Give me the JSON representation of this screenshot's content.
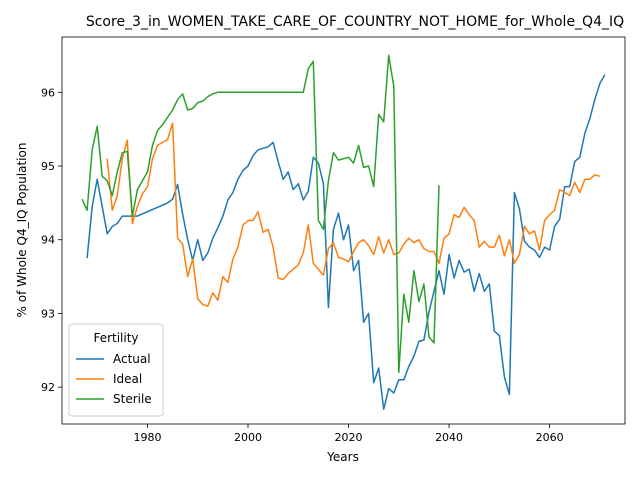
{
  "chart_data": {
    "type": "line",
    "title": "Score_3_in_WOMEN_TAKE_CARE_OF_COUNTRY_NOT_HOME_for_Whole_Q4_IQ",
    "xlabel": "Years",
    "ylabel": "% of Whole Q4_IQ Population",
    "xlim": [
      1963,
      2075
    ],
    "ylim": [
      91.5,
      96.75
    ],
    "xticks": [
      1980,
      2000,
      2020,
      2040,
      2060
    ],
    "yticks": [
      92,
      93,
      94,
      95,
      96
    ],
    "grid": false,
    "legend": {
      "title": "Fertility",
      "placement": "lower-left"
    },
    "series": [
      {
        "name": "Actual",
        "color": "#1f77b4",
        "points": [
          [
            1968,
            93.75
          ],
          [
            1969,
            94.45
          ],
          [
            1970,
            94.82
          ],
          [
            1971,
            94.45
          ],
          [
            1972,
            94.08
          ],
          [
            1973,
            94.18
          ],
          [
            1974,
            94.22
          ],
          [
            1975,
            94.32
          ],
          [
            1976,
            94.32
          ],
          [
            1977,
            94.32
          ],
          [
            1978,
            94.32
          ],
          [
            1980,
            94.38
          ],
          [
            1982,
            94.44
          ],
          [
            1984,
            94.5
          ],
          [
            1985,
            94.55
          ],
          [
            1986,
            94.75
          ],
          [
            1987,
            94.35
          ],
          [
            1988,
            94.0
          ],
          [
            1989,
            93.72
          ],
          [
            1990,
            94.0
          ],
          [
            1991,
            93.72
          ],
          [
            1992,
            93.82
          ],
          [
            1993,
            94.02
          ],
          [
            1994,
            94.16
          ],
          [
            1995,
            94.32
          ],
          [
            1996,
            94.54
          ],
          [
            1997,
            94.64
          ],
          [
            1998,
            94.82
          ],
          [
            1999,
            94.94
          ],
          [
            2000,
            95.0
          ],
          [
            2001,
            95.14
          ],
          [
            2002,
            95.22
          ],
          [
            2003,
            95.24
          ],
          [
            2004,
            95.26
          ],
          [
            2005,
            95.32
          ],
          [
            2006,
            95.06
          ],
          [
            2007,
            94.82
          ],
          [
            2008,
            94.92
          ],
          [
            2009,
            94.68
          ],
          [
            2010,
            94.76
          ],
          [
            2011,
            94.54
          ],
          [
            2012,
            94.66
          ],
          [
            2013,
            95.12
          ],
          [
            2014,
            95.04
          ],
          [
            2015,
            94.76
          ],
          [
            2016,
            93.08
          ],
          [
            2017,
            94.14
          ],
          [
            2018,
            94.36
          ],
          [
            2019,
            94.0
          ],
          [
            2020,
            94.2
          ],
          [
            2021,
            93.58
          ],
          [
            2022,
            93.72
          ],
          [
            2023,
            92.88
          ],
          [
            2024,
            93.0
          ],
          [
            2025,
            92.06
          ],
          [
            2026,
            92.26
          ],
          [
            2027,
            91.7
          ],
          [
            2028,
            91.98
          ],
          [
            2029,
            91.92
          ],
          [
            2030,
            92.1
          ],
          [
            2031,
            92.1
          ],
          [
            2032,
            92.28
          ],
          [
            2033,
            92.42
          ],
          [
            2034,
            92.62
          ],
          [
            2035,
            92.64
          ],
          [
            2036,
            93.02
          ],
          [
            2037,
            93.3
          ],
          [
            2038,
            93.58
          ],
          [
            2039,
            93.26
          ],
          [
            2040,
            93.8
          ],
          [
            2041,
            93.48
          ],
          [
            2042,
            93.72
          ],
          [
            2043,
            93.56
          ],
          [
            2044,
            93.6
          ],
          [
            2045,
            93.3
          ],
          [
            2046,
            93.54
          ],
          [
            2047,
            93.3
          ],
          [
            2048,
            93.4
          ],
          [
            2049,
            92.76
          ],
          [
            2050,
            92.7
          ],
          [
            2051,
            92.14
          ],
          [
            2052,
            91.9
          ],
          [
            2053,
            94.64
          ],
          [
            2054,
            94.42
          ],
          [
            2055,
            93.98
          ],
          [
            2056,
            93.9
          ],
          [
            2057,
            93.86
          ],
          [
            2058,
            93.76
          ],
          [
            2059,
            93.9
          ],
          [
            2060,
            93.86
          ],
          [
            2061,
            94.18
          ],
          [
            2062,
            94.28
          ],
          [
            2063,
            94.72
          ],
          [
            2064,
            94.72
          ],
          [
            2065,
            95.06
          ],
          [
            2066,
            95.12
          ],
          [
            2067,
            95.44
          ],
          [
            2068,
            95.64
          ],
          [
            2069,
            95.9
          ],
          [
            2070,
            96.12
          ],
          [
            2071,
            96.24
          ]
        ]
      },
      {
        "name": "Ideal",
        "color": "#ff7f0e",
        "points": [
          [
            1972,
            95.1
          ],
          [
            1973,
            94.4
          ],
          [
            1974,
            94.6
          ],
          [
            1975,
            95.1
          ],
          [
            1976,
            95.35
          ],
          [
            1977,
            94.22
          ],
          [
            1978,
            94.45
          ],
          [
            1979,
            94.62
          ],
          [
            1980,
            94.72
          ],
          [
            1981,
            95.1
          ],
          [
            1982,
            95.28
          ],
          [
            1983,
            95.32
          ],
          [
            1984,
            95.36
          ],
          [
            1985,
            95.58
          ],
          [
            1986,
            94.02
          ],
          [
            1987,
            93.94
          ],
          [
            1988,
            93.5
          ],
          [
            1989,
            93.74
          ],
          [
            1990,
            93.2
          ],
          [
            1991,
            93.12
          ],
          [
            1992,
            93.1
          ],
          [
            1993,
            93.28
          ],
          [
            1994,
            93.18
          ],
          [
            1995,
            93.5
          ],
          [
            1996,
            93.42
          ],
          [
            1997,
            93.74
          ],
          [
            1998,
            93.9
          ],
          [
            1999,
            94.2
          ],
          [
            2000,
            94.26
          ],
          [
            2001,
            94.26
          ],
          [
            2002,
            94.38
          ],
          [
            2003,
            94.1
          ],
          [
            2004,
            94.14
          ],
          [
            2005,
            93.9
          ],
          [
            2006,
            93.48
          ],
          [
            2007,
            93.46
          ],
          [
            2008,
            93.54
          ],
          [
            2009,
            93.6
          ],
          [
            2010,
            93.66
          ],
          [
            2011,
            93.82
          ],
          [
            2012,
            94.2
          ],
          [
            2013,
            93.68
          ],
          [
            2014,
            93.6
          ],
          [
            2015,
            93.52
          ],
          [
            2016,
            93.88
          ],
          [
            2017,
            93.96
          ],
          [
            2018,
            93.76
          ],
          [
            2019,
            93.74
          ],
          [
            2020,
            93.7
          ],
          [
            2021,
            93.84
          ],
          [
            2022,
            93.96
          ],
          [
            2023,
            94.0
          ],
          [
            2024,
            93.92
          ],
          [
            2025,
            93.8
          ],
          [
            2026,
            94.04
          ],
          [
            2027,
            93.82
          ],
          [
            2028,
            94.0
          ],
          [
            2029,
            93.8
          ],
          [
            2030,
            93.82
          ],
          [
            2031,
            93.94
          ],
          [
            2032,
            94.02
          ],
          [
            2033,
            93.96
          ],
          [
            2034,
            94.0
          ],
          [
            2035,
            93.88
          ],
          [
            2036,
            93.84
          ],
          [
            2037,
            93.84
          ],
          [
            2038,
            93.68
          ],
          [
            2039,
            94.02
          ],
          [
            2040,
            94.08
          ],
          [
            2041,
            94.34
          ],
          [
            2042,
            94.3
          ],
          [
            2043,
            94.44
          ],
          [
            2044,
            94.34
          ],
          [
            2045,
            94.26
          ],
          [
            2046,
            93.9
          ],
          [
            2047,
            93.98
          ],
          [
            2048,
            93.9
          ],
          [
            2049,
            93.9
          ],
          [
            2050,
            94.06
          ],
          [
            2051,
            93.78
          ],
          [
            2052,
            94.0
          ],
          [
            2053,
            93.68
          ],
          [
            2054,
            93.8
          ],
          [
            2055,
            94.18
          ],
          [
            2056,
            94.08
          ],
          [
            2057,
            94.12
          ],
          [
            2058,
            93.86
          ],
          [
            2059,
            94.26
          ],
          [
            2060,
            94.34
          ],
          [
            2061,
            94.4
          ],
          [
            2062,
            94.68
          ],
          [
            2063,
            94.64
          ],
          [
            2064,
            94.6
          ],
          [
            2065,
            94.78
          ],
          [
            2066,
            94.64
          ],
          [
            2067,
            94.82
          ],
          [
            2068,
            94.82
          ],
          [
            2069,
            94.88
          ],
          [
            2070,
            94.86
          ]
        ]
      },
      {
        "name": "Sterile",
        "color": "#2ca02c",
        "points": [
          [
            1967,
            94.55
          ],
          [
            1968,
            94.4
          ],
          [
            1969,
            95.22
          ],
          [
            1970,
            95.54
          ],
          [
            1971,
            94.86
          ],
          [
            1972,
            94.8
          ],
          [
            1973,
            94.6
          ],
          [
            1974,
            94.92
          ],
          [
            1975,
            95.18
          ],
          [
            1976,
            95.2
          ],
          [
            1977,
            94.32
          ],
          [
            1978,
            94.68
          ],
          [
            1979,
            94.8
          ],
          [
            1980,
            94.92
          ],
          [
            1981,
            95.28
          ],
          [
            1982,
            95.48
          ],
          [
            1983,
            95.56
          ],
          [
            1984,
            95.66
          ],
          [
            1985,
            95.76
          ],
          [
            1986,
            95.9
          ],
          [
            1987,
            95.98
          ],
          [
            1988,
            95.76
          ],
          [
            1989,
            95.78
          ],
          [
            1990,
            95.86
          ],
          [
            1991,
            95.88
          ],
          [
            1992,
            95.94
          ],
          [
            1993,
            95.98
          ],
          [
            1994,
            96.0
          ],
          [
            1995,
            96.0
          ],
          [
            1996,
            96.0
          ],
          [
            1997,
            96.0
          ],
          [
            1998,
            96.0
          ],
          [
            2000,
            96.0
          ],
          [
            2005,
            96.0
          ],
          [
            2010,
            96.0
          ],
          [
            2011,
            96.0
          ],
          [
            2012,
            96.32
          ],
          [
            2013,
            96.42
          ],
          [
            2014,
            94.26
          ],
          [
            2015,
            94.14
          ],
          [
            2016,
            94.8
          ],
          [
            2017,
            95.18
          ],
          [
            2018,
            95.08
          ],
          [
            2019,
            95.1
          ],
          [
            2020,
            95.12
          ],
          [
            2021,
            95.04
          ],
          [
            2022,
            95.28
          ],
          [
            2023,
            94.98
          ],
          [
            2024,
            95.0
          ],
          [
            2025,
            94.72
          ],
          [
            2026,
            95.7
          ],
          [
            2027,
            95.6
          ],
          [
            2028,
            96.5
          ],
          [
            2029,
            96.08
          ],
          [
            2030,
            92.2
          ],
          [
            2031,
            93.26
          ],
          [
            2032,
            92.88
          ],
          [
            2033,
            93.58
          ],
          [
            2034,
            93.16
          ],
          [
            2035,
            93.4
          ],
          [
            2036,
            92.68
          ],
          [
            2037,
            92.6
          ],
          [
            2038,
            94.74
          ]
        ]
      }
    ]
  }
}
